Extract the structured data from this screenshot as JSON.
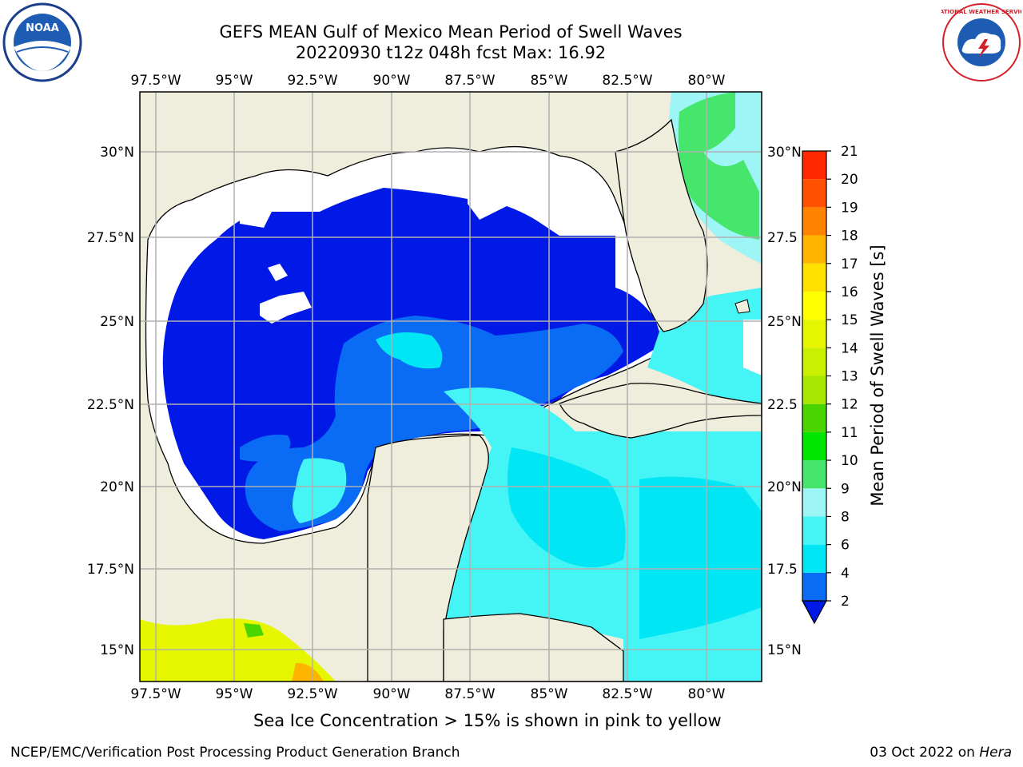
{
  "title": {
    "line1": "GEFS MEAN Gulf of Mexico Mean Period of Swell Waves",
    "line2": "20220930 t12z 048h fcst   Max: 16.92"
  },
  "map": {
    "lon_ticks": [
      "97.5°W",
      "95°W",
      "92.5°W",
      "90°W",
      "87.5°W",
      "85°W",
      "82.5°W",
      "80°W"
    ],
    "lat_ticks_left": [
      "30°N",
      "27.5°N",
      "25°N",
      "22.5°N",
      "20°N",
      "17.5°N",
      "15°N"
    ],
    "lat_ticks_right": [
      "30°N",
      "27.5",
      "25°N",
      "22.5",
      "20°N",
      "17.5",
      "15°N"
    ],
    "colors": {
      "land": "#efeedc",
      "no_data": "#ffffff",
      "grid": "#b0b0b0"
    }
  },
  "colorbar": {
    "label": "Mean Period of Swell Waves [s]",
    "ticks": [
      "2",
      "4",
      "6",
      "8",
      "9",
      "10",
      "11",
      "12",
      "13",
      "14",
      "15",
      "16",
      "17",
      "18",
      "19",
      "20",
      "21"
    ],
    "colors": [
      "#0a6cf5",
      "#00e6f5",
      "#45f5f5",
      "#9ef5f5",
      "#45e66b",
      "#00e600",
      "#4ad500",
      "#a6e600",
      "#c8f000",
      "#e6f500",
      "#ffff00",
      "#ffe100",
      "#ffb400",
      "#ff8200",
      "#ff5000",
      "#ff2800",
      "#ff0000"
    ],
    "extend_color": "#0019e6"
  },
  "caption": "Sea Ice Concentration > 15% is shown in pink to yellow",
  "footer": {
    "left": "NCEP/EMC/Verification Post Processing Product Generation Branch",
    "right_date": "03 Oct 2022 on ",
    "right_host": "Hera"
  },
  "logos": {
    "left_text": "NOAA",
    "right_text": "NATIONAL WEATHER SERVICE"
  }
}
